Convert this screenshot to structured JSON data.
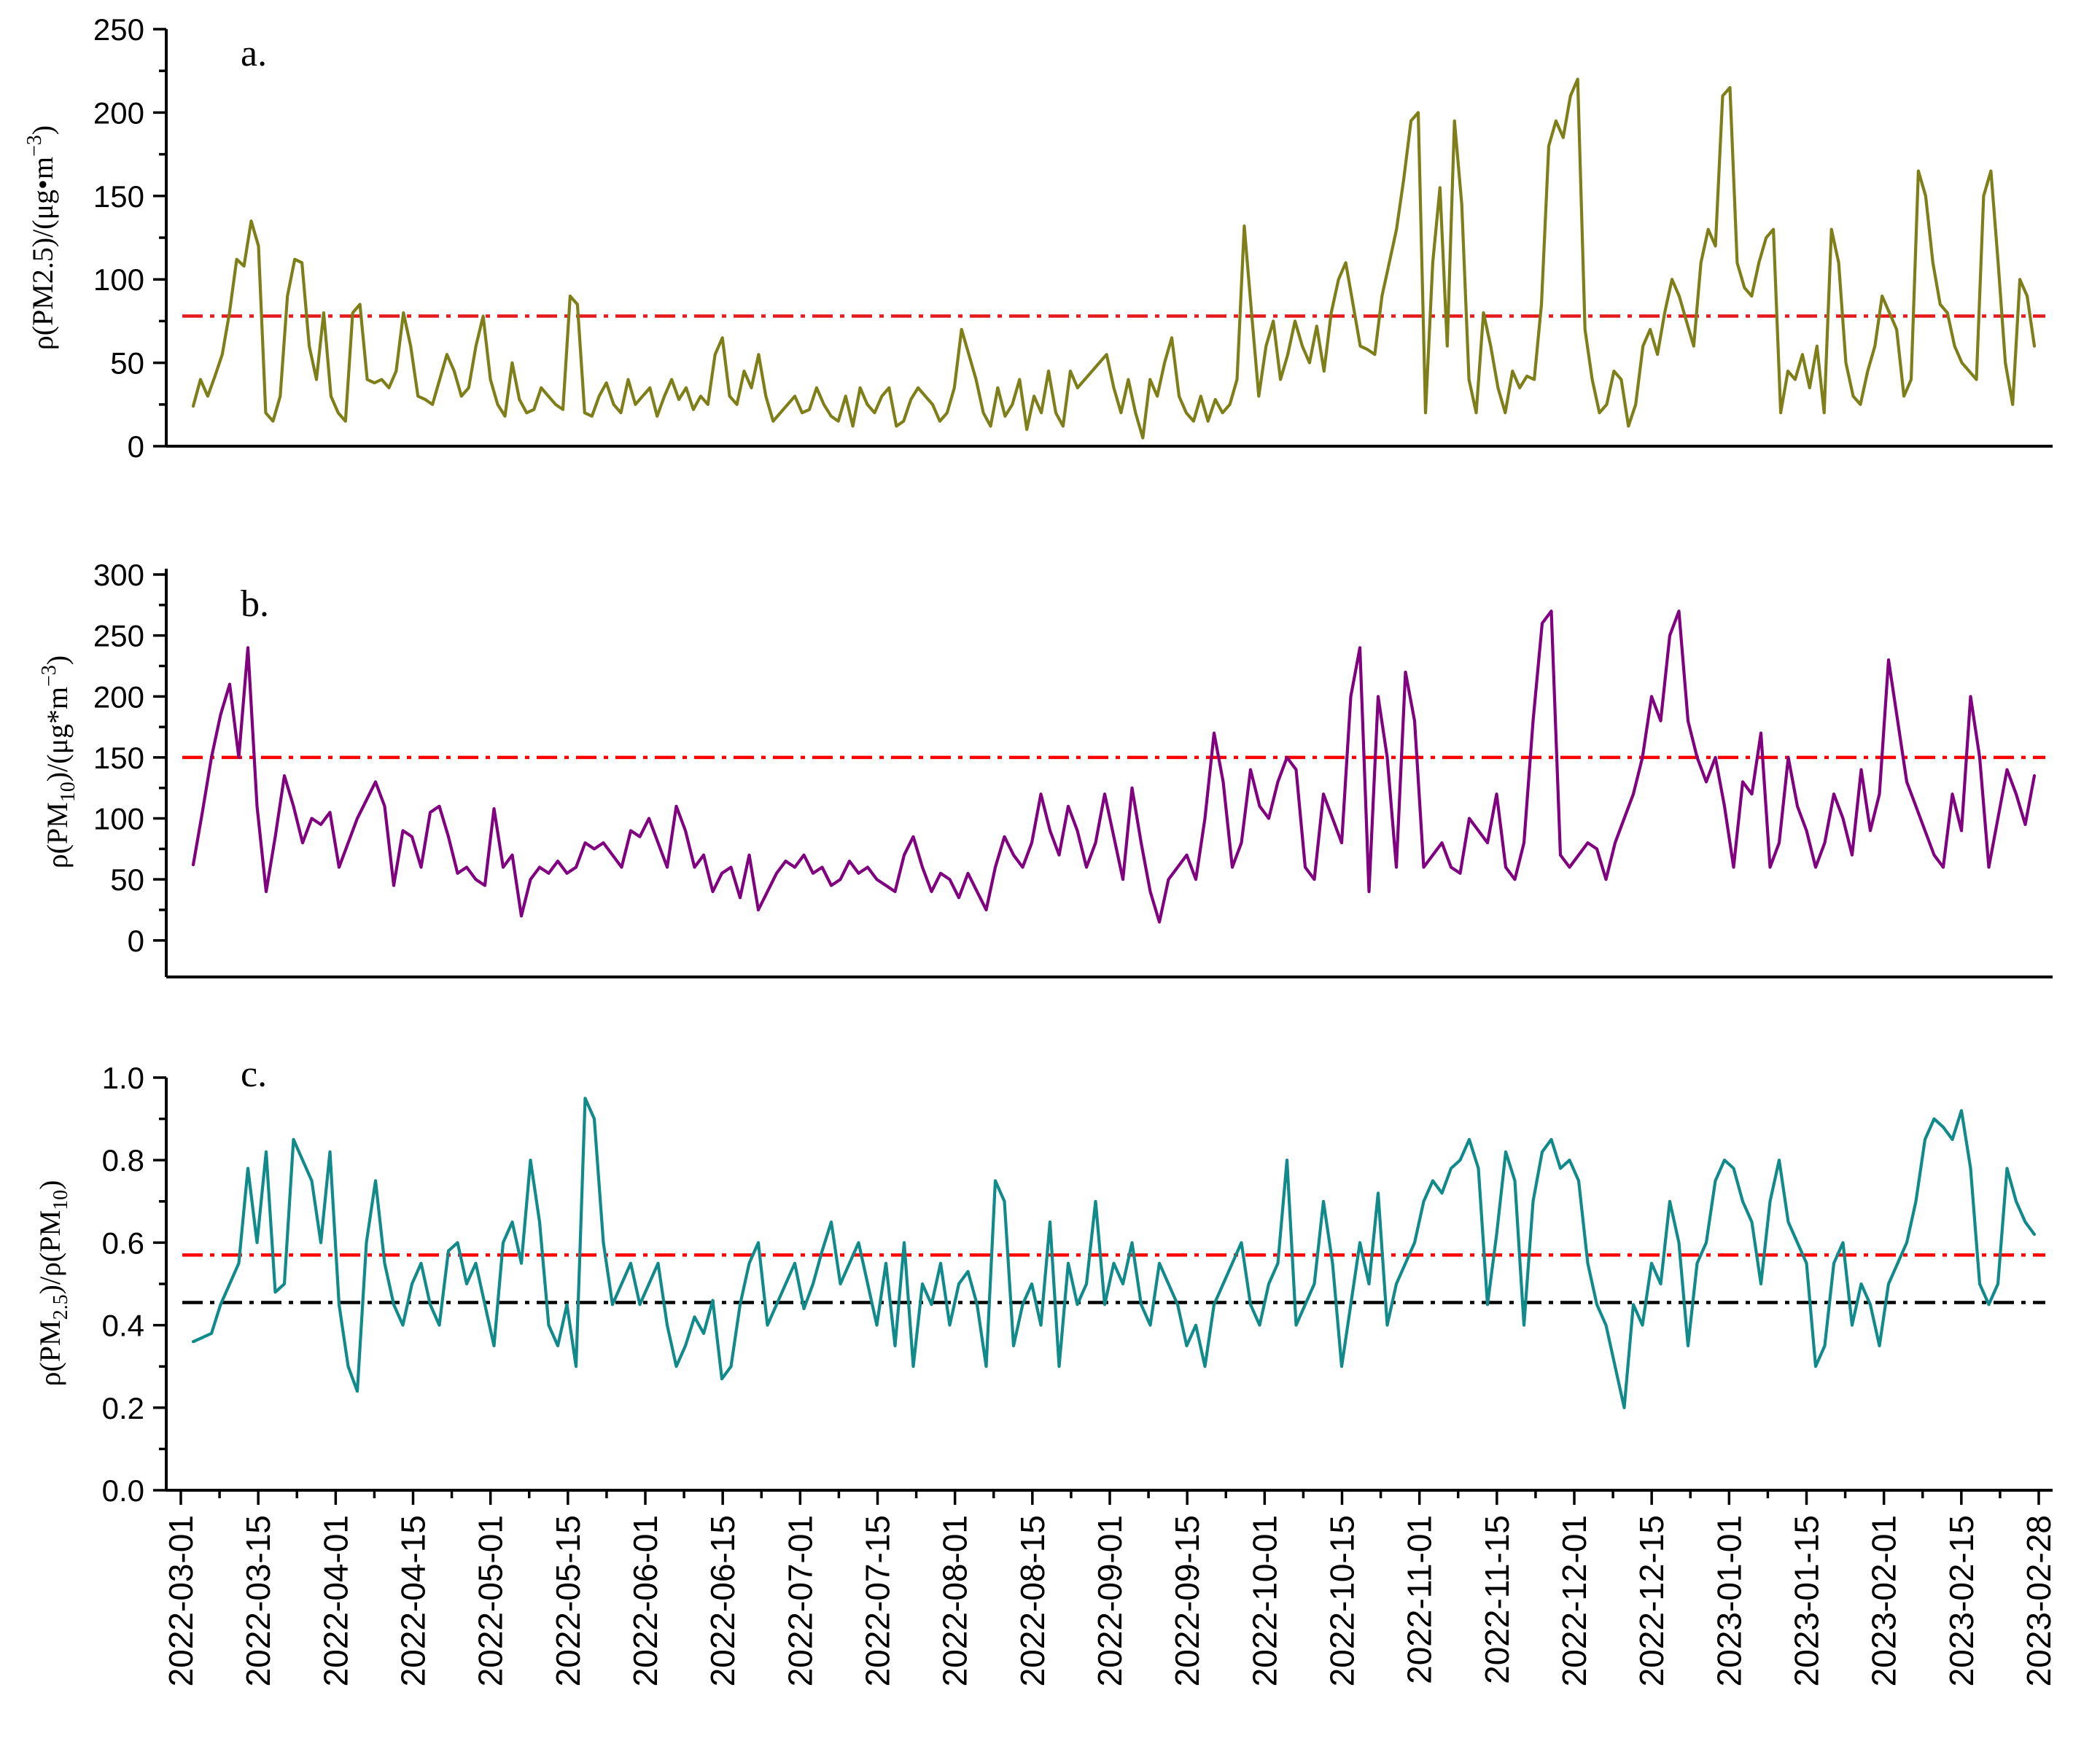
{
  "chart_data": [
    {
      "type": "line",
      "panel_label": "a.",
      "ylabel_html": [
        "ρ(PM2.5)/(μg•m",
        "−3",
        ")"
      ],
      "ylim": [
        0,
        250
      ],
      "yticks": [
        0,
        50,
        100,
        150,
        200,
        250
      ],
      "ytick_labels": [
        "0",
        "50",
        "100",
        "150",
        "200",
        "250"
      ],
      "color": "#7f7f1a",
      "reference_lines": [
        {
          "value": 78,
          "color": "#e41a1c",
          "style": "dash-dot"
        }
      ],
      "series": [
        {
          "name": "PM2.5",
          "values": [
            24,
            40,
            30,
            42,
            55,
            80,
            112,
            108,
            135,
            120,
            20,
            15,
            30,
            90,
            112,
            110,
            60,
            40,
            80,
            30,
            20,
            15,
            80,
            85,
            40,
            38,
            40,
            35,
            45,
            80,
            60,
            30,
            28,
            25,
            40,
            55,
            45,
            30,
            35,
            60,
            78,
            40,
            25,
            18,
            50,
            28,
            20,
            22,
            35,
            30,
            25,
            22,
            90,
            85,
            20,
            18,
            30,
            38,
            25,
            20,
            40,
            25,
            30,
            35,
            18,
            30,
            40,
            28,
            35,
            22,
            30,
            25,
            55,
            65,
            30,
            25,
            45,
            35,
            55,
            30,
            15,
            20,
            25,
            30,
            20,
            22,
            35,
            25,
            18,
            15,
            30,
            12,
            35,
            25,
            20,
            30,
            35,
            12,
            15,
            28,
            35,
            30,
            25,
            15,
            20,
            35,
            70,
            55,
            40,
            20,
            12,
            35,
            18,
            25,
            40,
            10,
            30,
            20,
            45,
            20,
            12,
            45,
            35,
            40,
            45,
            50,
            55,
            35,
            20,
            40,
            20,
            5,
            40,
            30,
            50,
            65,
            30,
            20,
            15,
            30,
            15,
            28,
            20,
            25,
            40,
            132,
            80,
            30,
            60,
            75,
            40,
            55,
            75,
            60,
            50,
            72,
            45,
            80,
            100,
            110,
            85,
            60,
            58,
            55,
            90,
            110,
            130,
            160,
            195,
            200,
            20,
            110,
            155,
            60,
            195,
            145,
            40,
            20,
            80,
            60,
            35,
            20,
            45,
            35,
            42,
            40,
            85,
            180,
            195,
            185,
            210,
            220,
            70,
            40,
            20,
            25,
            45,
            40,
            12,
            25,
            60,
            70,
            55,
            80,
            100,
            90,
            75,
            60,
            110,
            130,
            120,
            210,
            215,
            110,
            95,
            90,
            110,
            125,
            130,
            20,
            45,
            40,
            55,
            35,
            60,
            20,
            130,
            110,
            50,
            30,
            25,
            45,
            60,
            90,
            80,
            70,
            30,
            40,
            165,
            150,
            110,
            85,
            80,
            60,
            50,
            45,
            40,
            150,
            165,
            110,
            50,
            25,
            100,
            90,
            60
          ]
        }
      ]
    },
    {
      "type": "line",
      "panel_label": "b.",
      "ylabel_html": [
        "ρ(PM",
        "10",
        ")/(μg*m",
        "−3",
        ")"
      ],
      "ylim": [
        -30,
        300
      ],
      "yticks": [
        0,
        50,
        100,
        150,
        200,
        250,
        300
      ],
      "ytick_labels": [
        "0",
        "50",
        "100",
        "150",
        "200",
        "250",
        "300"
      ],
      "color": "#800080",
      "reference_lines": [
        {
          "value": 150,
          "color": "#ff0000",
          "style": "dash-dot"
        }
      ],
      "series": [
        {
          "name": "PM10",
          "values": [
            62,
            105,
            150,
            185,
            210,
            150,
            240,
            110,
            40,
            85,
            135,
            110,
            80,
            100,
            95,
            105,
            60,
            80,
            100,
            115,
            130,
            110,
            45,
            90,
            85,
            60,
            105,
            110,
            85,
            55,
            60,
            50,
            45,
            108,
            60,
            70,
            20,
            50,
            60,
            55,
            65,
            55,
            60,
            80,
            75,
            80,
            70,
            60,
            90,
            85,
            100,
            80,
            60,
            110,
            90,
            60,
            70,
            40,
            55,
            60,
            35,
            70,
            25,
            40,
            55,
            65,
            60,
            70,
            55,
            60,
            45,
            50,
            65,
            55,
            60,
            50,
            45,
            40,
            70,
            85,
            60,
            40,
            55,
            50,
            35,
            55,
            40,
            25,
            60,
            85,
            70,
            60,
            80,
            120,
            90,
            70,
            110,
            90,
            60,
            80,
            120,
            85,
            50,
            125,
            80,
            40,
            15,
            50,
            60,
            70,
            50,
            100,
            170,
            130,
            60,
            80,
            140,
            110,
            100,
            130,
            150,
            140,
            60,
            50,
            120,
            100,
            80,
            200,
            240,
            40,
            200,
            150,
            60,
            220,
            180,
            60,
            70,
            80,
            60,
            55,
            100,
            90,
            80,
            120,
            60,
            50,
            80,
            180,
            260,
            270,
            70,
            60,
            70,
            80,
            75,
            50,
            80,
            100,
            120,
            150,
            200,
            180,
            250,
            270,
            180,
            150,
            130,
            150,
            110,
            60,
            130,
            120,
            170,
            60,
            80,
            150,
            110,
            90,
            60,
            80,
            120,
            100,
            70,
            140,
            90,
            120,
            230,
            180,
            130,
            110,
            90,
            70,
            60,
            120,
            90,
            200,
            150,
            60,
            100,
            140,
            120,
            95,
            135
          ]
        }
      ]
    },
    {
      "type": "line",
      "panel_label": "c.",
      "ylabel_html": [
        "ρ(PM",
        "2.5",
        ")/ρ(PM",
        "10",
        ")"
      ],
      "ylim": [
        0,
        1.0
      ],
      "yticks": [
        0.0,
        0.2,
        0.4,
        0.6,
        0.8,
        1.0
      ],
      "ytick_labels": [
        "0.0",
        "0.2",
        "0.4",
        "0.6",
        "0.8",
        "1.0"
      ],
      "color": "#108a8a",
      "reference_lines": [
        {
          "value": 0.57,
          "color": "#ff0000",
          "style": "dash-dot"
        },
        {
          "value": 0.455,
          "color": "#000000",
          "style": "dash-dot"
        }
      ],
      "series": [
        {
          "name": "ratio",
          "values": [
            0.36,
            0.37,
            0.38,
            0.45,
            0.5,
            0.55,
            0.78,
            0.6,
            0.82,
            0.48,
            0.5,
            0.85,
            0.8,
            0.75,
            0.6,
            0.82,
            0.45,
            0.3,
            0.24,
            0.6,
            0.75,
            0.55,
            0.45,
            0.4,
            0.5,
            0.55,
            0.45,
            0.4,
            0.58,
            0.6,
            0.5,
            0.55,
            0.45,
            0.35,
            0.6,
            0.65,
            0.55,
            0.8,
            0.65,
            0.4,
            0.35,
            0.45,
            0.3,
            0.95,
            0.9,
            0.6,
            0.45,
            0.5,
            0.55,
            0.45,
            0.5,
            0.55,
            0.4,
            0.3,
            0.35,
            0.42,
            0.38,
            0.46,
            0.27,
            0.3,
            0.45,
            0.55,
            0.6,
            0.4,
            0.45,
            0.5,
            0.55,
            0.44,
            0.5,
            0.58,
            0.65,
            0.5,
            0.55,
            0.6,
            0.5,
            0.4,
            0.55,
            0.35,
            0.6,
            0.3,
            0.5,
            0.45,
            0.55,
            0.4,
            0.5,
            0.53,
            0.45,
            0.3,
            0.75,
            0.7,
            0.35,
            0.45,
            0.5,
            0.4,
            0.65,
            0.3,
            0.55,
            0.45,
            0.5,
            0.7,
            0.45,
            0.55,
            0.5,
            0.6,
            0.45,
            0.4,
            0.55,
            0.5,
            0.45,
            0.35,
            0.4,
            0.3,
            0.45,
            0.5,
            0.55,
            0.6,
            0.45,
            0.4,
            0.5,
            0.55,
            0.8,
            0.4,
            0.45,
            0.5,
            0.7,
            0.55,
            0.3,
            0.45,
            0.6,
            0.5,
            0.72,
            0.4,
            0.5,
            0.55,
            0.6,
            0.7,
            0.75,
            0.72,
            0.78,
            0.8,
            0.85,
            0.78,
            0.45,
            0.62,
            0.82,
            0.75,
            0.4,
            0.7,
            0.82,
            0.85,
            0.78,
            0.8,
            0.75,
            0.55,
            0.45,
            0.4,
            0.3,
            0.2,
            0.45,
            0.4,
            0.55,
            0.5,
            0.7,
            0.6,
            0.35,
            0.55,
            0.6,
            0.75,
            0.8,
            0.78,
            0.7,
            0.65,
            0.5,
            0.7,
            0.8,
            0.65,
            0.6,
            0.55,
            0.3,
            0.35,
            0.55,
            0.6,
            0.4,
            0.5,
            0.45,
            0.35,
            0.5,
            0.55,
            0.6,
            0.7,
            0.85,
            0.9,
            0.88,
            0.85,
            0.92,
            0.78,
            0.5,
            0.45,
            0.5,
            0.78,
            0.7,
            0.65,
            0.62
          ]
        }
      ]
    }
  ],
  "x_axis": {
    "tick_labels": [
      "2022-03-01",
      "2022-03-15",
      "2022-04-01",
      "2022-04-15",
      "2022-05-01",
      "2022-05-15",
      "2022-06-01",
      "2022-06-15",
      "2022-07-01",
      "2022-07-15",
      "2022-08-01",
      "2022-08-15",
      "2022-09-01",
      "2022-09-15",
      "2022-10-01",
      "2022-10-15",
      "2022-11-01",
      "2022-11-15",
      "2022-12-01",
      "2022-12-15",
      "2023-01-01",
      "2023-01-15",
      "2023-02-01",
      "2023-02-15",
      "2023-02-28"
    ]
  }
}
